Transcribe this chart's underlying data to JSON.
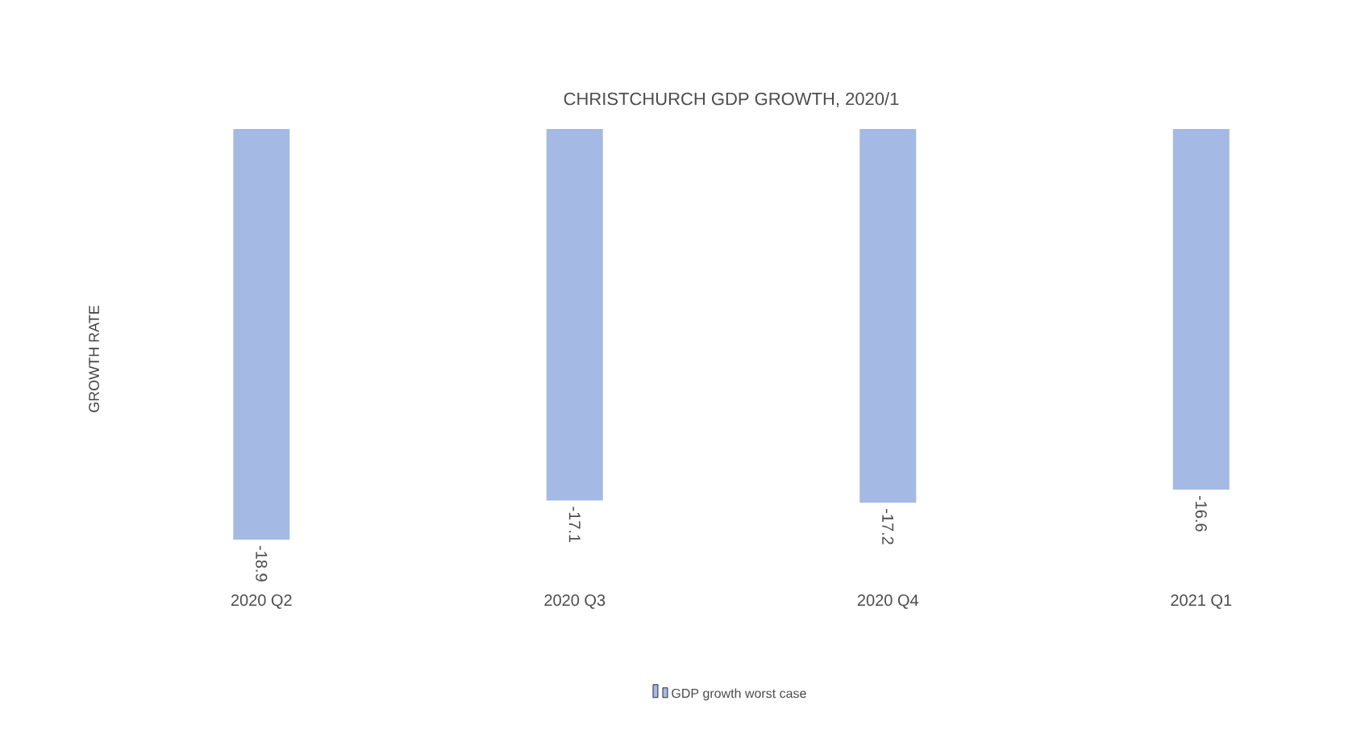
{
  "chart_data": {
    "type": "bar",
    "title": "CHRISTCHURCH GDP GROWTH, 2020/1",
    "ylabel": "GROWTH RATE",
    "categories": [
      "2020 Q2",
      "2020 Q3",
      "2020 Q4",
      "2021 Q1"
    ],
    "series": [
      {
        "name": "GDP growth worst case",
        "color": "#a4b9e3",
        "values": [
          -18.9,
          -17.1,
          -17.2,
          -16.6
        ],
        "value_labels": [
          "-18.9",
          "-17.1",
          "-17.2",
          "-16.6"
        ]
      }
    ],
    "tick_labels": "x",
    "legend": "bottom"
  }
}
